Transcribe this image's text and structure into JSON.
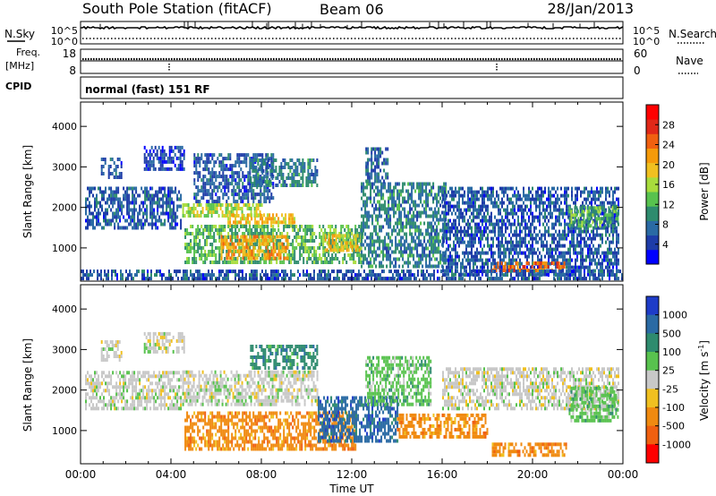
{
  "header": {
    "station": "South Pole Station (fitACF)",
    "beam": "Beam 06",
    "date": "28/Jan/2013"
  },
  "strips": {
    "nsky_label": "N.Sky",
    "nsky_ticks": [
      "10^5",
      "10^0"
    ],
    "nsearch_label": "N.Search",
    "nsearch_ticks": [
      "10^5",
      "10^0"
    ],
    "freq_label": "Freq.",
    "freq_unit": "[MHz]",
    "freq_ticks": [
      "18",
      "8"
    ],
    "nave_label": "Nave",
    "nave_ticks": [
      "60",
      "0"
    ],
    "cpid_label": "CPID",
    "cpid_text": "normal (fast) 151 RF"
  },
  "chart_data": [
    {
      "type": "heatmap",
      "name": "power-panel",
      "xlabel": "",
      "ylabel": "Slant Range [km]",
      "xlim": [
        0,
        24
      ],
      "ylim": [
        180,
        4600
      ],
      "yticks": [
        "1000",
        "2000",
        "3000",
        "4000"
      ],
      "ytick_values": [
        1000,
        2000,
        3000,
        4000
      ],
      "colorbar_label": "Power [dB]",
      "colorbar_ticks": [
        "4",
        "8",
        "12",
        "16",
        "20",
        "24",
        "28"
      ],
      "colorbar_tick_values": [
        4,
        8,
        12,
        16,
        20,
        24,
        28
      ],
      "colorbar_range": [
        0,
        32
      ],
      "colorbar_colors": [
        "#0000ff",
        "#1e3ca8",
        "#2a6aa4",
        "#2e8b6e",
        "#58c24e",
        "#a8dc3c",
        "#f0c020",
        "#f59a0a",
        "#f06010",
        "#e02818",
        "#ff0000"
      ],
      "regions": [
        {
          "t0": 0.2,
          "t1": 4.4,
          "r0": 1450,
          "r1": 2500,
          "level": 5
        },
        {
          "t0": 0.9,
          "t1": 1.8,
          "r0": 2700,
          "r1": 3200,
          "level": 5
        },
        {
          "t0": 2.8,
          "t1": 4.6,
          "r0": 2900,
          "r1": 3500,
          "level": 4
        },
        {
          "t0": 5.0,
          "t1": 8.5,
          "r0": 2100,
          "r1": 3300,
          "level": 5
        },
        {
          "t0": 7.5,
          "t1": 10.5,
          "r0": 2500,
          "r1": 3200,
          "level": 8
        },
        {
          "t0": 4.5,
          "t1": 8.0,
          "r0": 1750,
          "r1": 2050,
          "level": 16
        },
        {
          "t0": 6.5,
          "t1": 9.5,
          "r0": 1500,
          "r1": 1800,
          "level": 20
        },
        {
          "t0": 4.6,
          "t1": 12.5,
          "r0": 600,
          "r1": 1550,
          "level": 12
        },
        {
          "t0": 6.2,
          "t1": 9.2,
          "r0": 700,
          "r1": 1250,
          "level": 22
        },
        {
          "t0": 10.8,
          "t1": 12.4,
          "r0": 900,
          "r1": 1300,
          "level": 20
        },
        {
          "t0": 12.4,
          "t1": 16.2,
          "r0": 500,
          "r1": 2600,
          "level": 8
        },
        {
          "t0": 12.6,
          "t1": 13.6,
          "r0": 2600,
          "r1": 3400,
          "level": 6
        },
        {
          "t0": 16.0,
          "t1": 23.8,
          "r0": 300,
          "r1": 2500,
          "level": 5
        },
        {
          "t0": 18.2,
          "t1": 21.5,
          "r0": 400,
          "r1": 600,
          "level": 25
        },
        {
          "t0": 21.6,
          "t1": 23.8,
          "r0": 1500,
          "r1": 2000,
          "level": 12
        },
        {
          "t0": 0.0,
          "t1": 24.0,
          "r0": 200,
          "r1": 400,
          "level": 5
        }
      ]
    },
    {
      "type": "heatmap",
      "name": "velocity-panel",
      "xlabel": "Time UT",
      "ylabel": "Slant Range [km]",
      "xlim": [
        0,
        24
      ],
      "ylim": [
        180,
        4600
      ],
      "xticks": [
        "00:00",
        "04:00",
        "08:00",
        "12:00",
        "16:00",
        "20:00",
        "00:00"
      ],
      "xtick_values": [
        0,
        4,
        8,
        12,
        16,
        20,
        24
      ],
      "yticks": [
        "1000",
        "2000",
        "3000",
        "4000"
      ],
      "ytick_values": [
        1000,
        2000,
        3000,
        4000
      ],
      "colorbar_label": "Velocity [m s^-1]",
      "colorbar_ticks": [
        "1000",
        "500",
        "100",
        "25",
        "-25",
        "-100",
        "-500",
        "-1000"
      ],
      "colorbar_colors": [
        "#1e3cc8",
        "#2a6aa4",
        "#2e8b6e",
        "#58c24e",
        "#c8c8c8",
        "#f0c020",
        "#f08a10",
        "#f06010",
        "#ff0000"
      ],
      "regions": [
        {
          "t0": 0.2,
          "t1": 4.4,
          "r0": 1500,
          "r1": 2400,
          "cat": 4
        },
        {
          "t0": 0.9,
          "t1": 1.8,
          "r0": 2700,
          "r1": 3200,
          "cat": 4
        },
        {
          "t0": 2.8,
          "t1": 4.6,
          "r0": 2900,
          "r1": 3400,
          "cat": 4
        },
        {
          "t0": 4.5,
          "t1": 10.5,
          "r0": 1600,
          "r1": 2400,
          "cat": 4
        },
        {
          "t0": 7.5,
          "t1": 10.5,
          "r0": 2500,
          "r1": 3100,
          "cat": 2
        },
        {
          "t0": 4.6,
          "t1": 12.2,
          "r0": 500,
          "r1": 1450,
          "cat": 6
        },
        {
          "t0": 10.5,
          "t1": 14.0,
          "r0": 700,
          "r1": 1800,
          "cat": 1
        },
        {
          "t0": 12.6,
          "t1": 15.5,
          "r0": 1600,
          "r1": 2800,
          "cat": 3
        },
        {
          "t0": 14.0,
          "t1": 18.0,
          "r0": 800,
          "r1": 1400,
          "cat": 6
        },
        {
          "t0": 16.0,
          "t1": 23.8,
          "r0": 1500,
          "r1": 2500,
          "cat": 4
        },
        {
          "t0": 18.2,
          "t1": 21.5,
          "r0": 350,
          "r1": 650,
          "cat": 6
        },
        {
          "t0": 21.6,
          "t1": 23.8,
          "r0": 1200,
          "r1": 2000,
          "cat": 3
        }
      ]
    }
  ]
}
